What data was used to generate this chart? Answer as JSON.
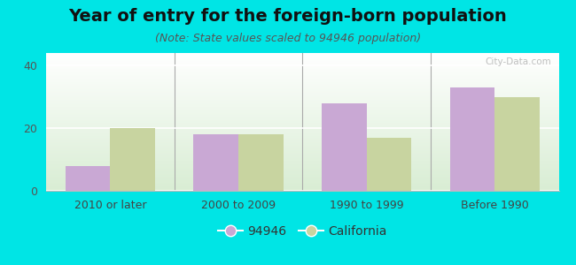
{
  "title": "Year of entry for the foreign-born population",
  "subtitle": "(Note: State values scaled to 94946 population)",
  "categories": [
    "2010 or later",
    "2000 to 2009",
    "1990 to 1999",
    "Before 1990"
  ],
  "values_94946": [
    8,
    18,
    28,
    33
  ],
  "values_california": [
    20,
    18,
    17,
    30
  ],
  "bar_color_94946": "#c9a8d4",
  "bar_color_california": "#c8d4a0",
  "background_outer": "#00e5e5",
  "ylim": [
    0,
    44
  ],
  "yticks": [
    0,
    20,
    40
  ],
  "legend_label_94946": "94946",
  "legend_label_california": "California",
  "bar_width": 0.35,
  "title_fontsize": 14,
  "subtitle_fontsize": 9,
  "tick_fontsize": 9,
  "legend_fontsize": 10,
  "gradient_top": "#ffffff",
  "gradient_bottom": "#d4edda"
}
